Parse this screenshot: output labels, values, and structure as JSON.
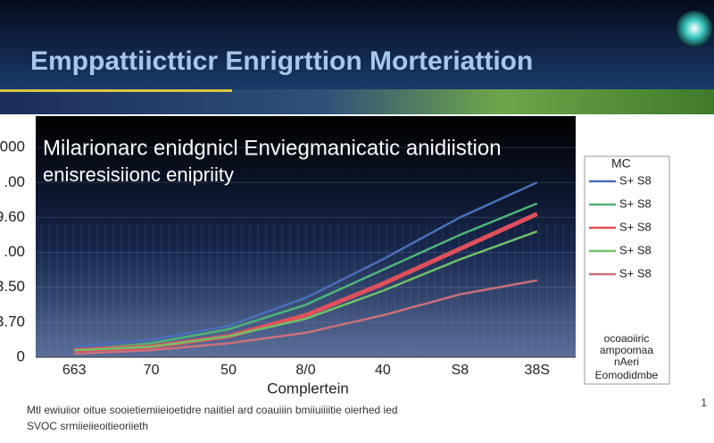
{
  "chart_data": {
    "type": "line",
    "title": "Emppattiictticr Enrigrttion Morteriattion",
    "subtitle": [
      "Milarionarc enidgnicl Enviegmanicatic anidiistion",
      "enisresisiionc enipriity"
    ],
    "x_label": "Complertein",
    "categories": [
      "663",
      "70",
      "50",
      "8/0",
      "40",
      "S8",
      "38S"
    ],
    "ylim": [
      0,
      7
    ],
    "yticks": [
      0,
      {
        "value": 1,
        "label": "3.70"
      },
      {
        "value": 2,
        "label": "3.50"
      },
      {
        "value": 3,
        "label": ".00"
      },
      {
        "value": 4,
        "label": "9.60"
      },
      {
        "value": 5,
        "label": ".00"
      },
      {
        "value": 6,
        "label": "000"
      }
    ],
    "grid": true,
    "legend_title": "MC",
    "series": [
      {
        "name": "S+ S8",
        "color": "#4a6fb8",
        "values": [
          0.3,
          0.5,
          0.9,
          1.7,
          2.8,
          4.0,
          5.0
        ]
      },
      {
        "name": "S+ S8",
        "color": "#4fb37a",
        "values": [
          0.2,
          0.4,
          0.8,
          1.5,
          2.5,
          3.5,
          4.4
        ]
      },
      {
        "name": "S+ S8",
        "color": "#e0505a",
        "values": [
          0.2,
          0.3,
          0.6,
          1.2,
          2.1,
          3.1,
          4.1
        ]
      },
      {
        "name": "S+ S8",
        "color": "#6fc06a",
        "values": [
          0.2,
          0.3,
          0.6,
          1.1,
          1.9,
          2.8,
          3.6
        ]
      },
      {
        "name": "S+ S8",
        "color": "#c9707c",
        "values": [
          0.1,
          0.2,
          0.4,
          0.7,
          1.2,
          1.8,
          2.2
        ]
      }
    ],
    "legend_notes": [
      "ocoaoiiric",
      "ampoomaa",
      "nAeri"
    ],
    "legend_footer": "Eomodidmbe",
    "footnote": [
      "Mtl  ewiuiior  oitue  sooietiemiieioetidre  naiitiel  ard  coauiiin  bmiiuiiiitie  oierhed  ied",
      "SVOC  srmiieiieoitieoriieth"
    ],
    "page_number": "1"
  }
}
